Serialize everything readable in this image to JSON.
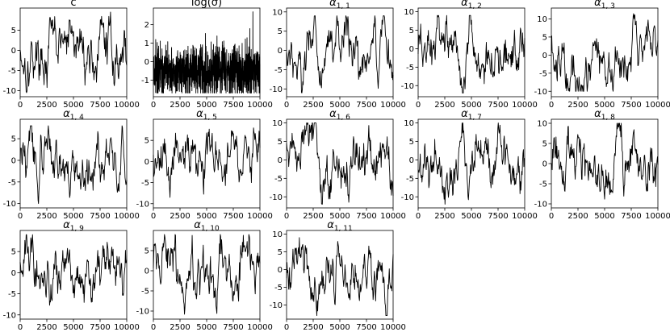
{
  "chart_data": [
    {
      "type": "line",
      "title": "c",
      "xticks": [
        0,
        2500,
        5000,
        7500,
        10000
      ],
      "xlim": [
        0,
        10000
      ],
      "yticks": [
        -10,
        -5,
        0,
        5
      ],
      "ylim": [
        -11.5,
        10.5
      ],
      "series": [
        {
          "n": 10000,
          "mean": 0,
          "range": [
            -10.5,
            9.5
          ]
        }
      ]
    },
    {
      "type": "line",
      "title": "log(σ)",
      "xticks": [
        0,
        2500,
        5000,
        7500,
        10000
      ],
      "xlim": [
        0,
        10000
      ],
      "yticks": [
        -1,
        0,
        1,
        2
      ],
      "ylim": [
        -1.9,
        2.9
      ],
      "series": [
        {
          "n": 10000,
          "mean": -0.5,
          "range": [
            -1.7,
            2.7
          ]
        }
      ]
    },
    {
      "type": "line",
      "title": "α",
      "title_sub": "1, 1",
      "xticks": [
        0,
        2500,
        5000,
        7500,
        10000
      ],
      "xlim": [
        0,
        10000
      ],
      "yticks": [
        -10,
        -5,
        0,
        5,
        10
      ],
      "ylim": [
        -12,
        11
      ],
      "series": [
        {
          "n": 10000,
          "mean": -1,
          "range": [
            -11,
            9
          ]
        }
      ]
    },
    {
      "type": "line",
      "title": "α",
      "title_sub": "1, 2",
      "xticks": [
        0,
        2500,
        5000,
        7500,
        10000
      ],
      "xlim": [
        0,
        10000
      ],
      "yticks": [
        -10,
        -5,
        0,
        5,
        10
      ],
      "ylim": [
        -13,
        11
      ],
      "series": [
        {
          "n": 10000,
          "mean": 0,
          "range": [
            -12,
            9
          ]
        }
      ]
    },
    {
      "type": "line",
      "title": "α",
      "title_sub": "1, 3",
      "xticks": [
        0,
        2500,
        5000,
        7500,
        10000
      ],
      "xlim": [
        0,
        10000
      ],
      "yticks": [
        -10,
        -5,
        0,
        5,
        10
      ],
      "ylim": [
        -11.5,
        13
      ],
      "series": [
        {
          "n": 10000,
          "mean": 0,
          "range": [
            -10,
            12
          ]
        }
      ]
    },
    {
      "type": "line",
      "title": "α",
      "title_sub": "1, 4",
      "xticks": [
        0,
        2500,
        5000,
        7500,
        10000
      ],
      "xlim": [
        0,
        10000
      ],
      "yticks": [
        -10,
        -5,
        0,
        5
      ],
      "ylim": [
        -11,
        9.5
      ],
      "series": [
        {
          "n": 10000,
          "mean": 0,
          "range": [
            -10,
            8
          ]
        }
      ]
    },
    {
      "type": "line",
      "title": "α",
      "title_sub": "1, 5",
      "xticks": [
        0,
        2500,
        5000,
        7500,
        10000
      ],
      "xlim": [
        0,
        10000
      ],
      "yticks": [
        -10,
        -5,
        0,
        5
      ],
      "ylim": [
        -11,
        10
      ],
      "series": [
        {
          "n": 10000,
          "mean": 0,
          "range": [
            -10,
            9
          ]
        }
      ]
    },
    {
      "type": "line",
      "title": "α",
      "title_sub": "1, 6",
      "xticks": [
        0,
        2500,
        5000,
        7500,
        10000
      ],
      "xlim": [
        0,
        10000
      ],
      "yticks": [
        -10,
        -5,
        0,
        5,
        10
      ],
      "ylim": [
        -13,
        11
      ],
      "series": [
        {
          "n": 10000,
          "mean": 0,
          "range": [
            -12,
            10
          ]
        }
      ]
    },
    {
      "type": "line",
      "title": "α",
      "title_sub": "1, 7",
      "xticks": [
        0,
        2500,
        5000,
        7500,
        10000
      ],
      "xlim": [
        0,
        10000
      ],
      "yticks": [
        -10,
        -5,
        0,
        5,
        10
      ],
      "ylim": [
        -13,
        11
      ],
      "series": [
        {
          "n": 10000,
          "mean": 0,
          "range": [
            -12,
            10
          ]
        }
      ]
    },
    {
      "type": "line",
      "title": "α",
      "title_sub": "1, 8",
      "xticks": [
        0,
        2500,
        5000,
        7500,
        10000
      ],
      "xlim": [
        0,
        10000
      ],
      "yticks": [
        -10,
        -5,
        0,
        5,
        10
      ],
      "ylim": [
        -11,
        11
      ],
      "series": [
        {
          "n": 10000,
          "mean": 0,
          "range": [
            -10,
            10
          ]
        }
      ]
    },
    {
      "type": "line",
      "title": "α",
      "title_sub": "1, 9",
      "xticks": [
        0,
        2500,
        5000,
        7500,
        10000
      ],
      "xlim": [
        0,
        10000
      ],
      "yticks": [
        -10,
        -5,
        0,
        5
      ],
      "ylim": [
        -11,
        10
      ],
      "series": [
        {
          "n": 10000,
          "mean": 0,
          "range": [
            -10,
            9
          ]
        }
      ]
    },
    {
      "type": "line",
      "title": "α",
      "title_sub": "1, 10",
      "xticks": [
        0,
        2500,
        5000,
        7500,
        10000
      ],
      "xlim": [
        0,
        10000
      ],
      "yticks": [
        -10,
        -5,
        0,
        5
      ],
      "ylim": [
        -12,
        10
      ],
      "series": [
        {
          "n": 10000,
          "mean": 0,
          "range": [
            -11,
            9
          ]
        }
      ]
    },
    {
      "type": "line",
      "title": "α",
      "title_sub": "1, 11",
      "xticks": [
        0,
        2500,
        5000,
        7500,
        10000
      ],
      "xlim": [
        0,
        10000
      ],
      "yticks": [
        -10,
        -5,
        0,
        5,
        10
      ],
      "ylim": [
        -14,
        11
      ],
      "series": [
        {
          "n": 10000,
          "mean": -1,
          "range": [
            -13,
            9
          ]
        }
      ]
    }
  ],
  "colors": {
    "line": "#000000",
    "frame": "#000000",
    "background": "#ffffff"
  }
}
